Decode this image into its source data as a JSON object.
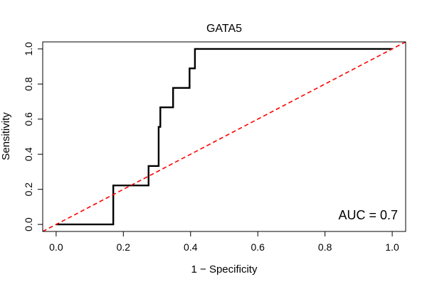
{
  "chart_data": {
    "type": "line",
    "title": "GATA5",
    "xlabel": "1 − Specificity",
    "ylabel": "Sensitivity",
    "xlim": [
      -0.04,
      1.04
    ],
    "ylim": [
      -0.04,
      1.04
    ],
    "x_ticks": [
      0.0,
      0.2,
      0.4,
      0.6,
      0.8,
      1.0
    ],
    "x_tick_labels": [
      "0.0",
      "0.2",
      "0.4",
      "0.6",
      "0.8",
      "1.0"
    ],
    "y_ticks": [
      0.0,
      0.2,
      0.4,
      0.6,
      0.8,
      1.0
    ],
    "y_tick_labels": [
      "0.0",
      "0.2",
      "0.4",
      "0.6",
      "0.8",
      "1.0"
    ],
    "annotation": "AUC = 0.7",
    "grid": false,
    "series": [
      {
        "style": "solid",
        "color": "#000000",
        "x": [
          0.0,
          0.17,
          0.17,
          0.17,
          0.17,
          0.275,
          0.275,
          0.305,
          0.305,
          0.305,
          0.31,
          0.31,
          0.348,
          0.348,
          0.397,
          0.397,
          0.413,
          0.413,
          1.0
        ],
        "y": [
          0.0,
          0.0,
          0.111,
          0.222,
          0.222,
          0.222,
          0.333,
          0.333,
          0.444,
          0.556,
          0.556,
          0.667,
          0.667,
          0.778,
          0.778,
          0.889,
          0.889,
          1.0,
          1.0
        ]
      },
      {
        "style": "dashed",
        "color": "#ff0000",
        "x": [
          -0.04,
          1.04
        ],
        "y": [
          -0.04,
          1.04
        ]
      }
    ]
  }
}
